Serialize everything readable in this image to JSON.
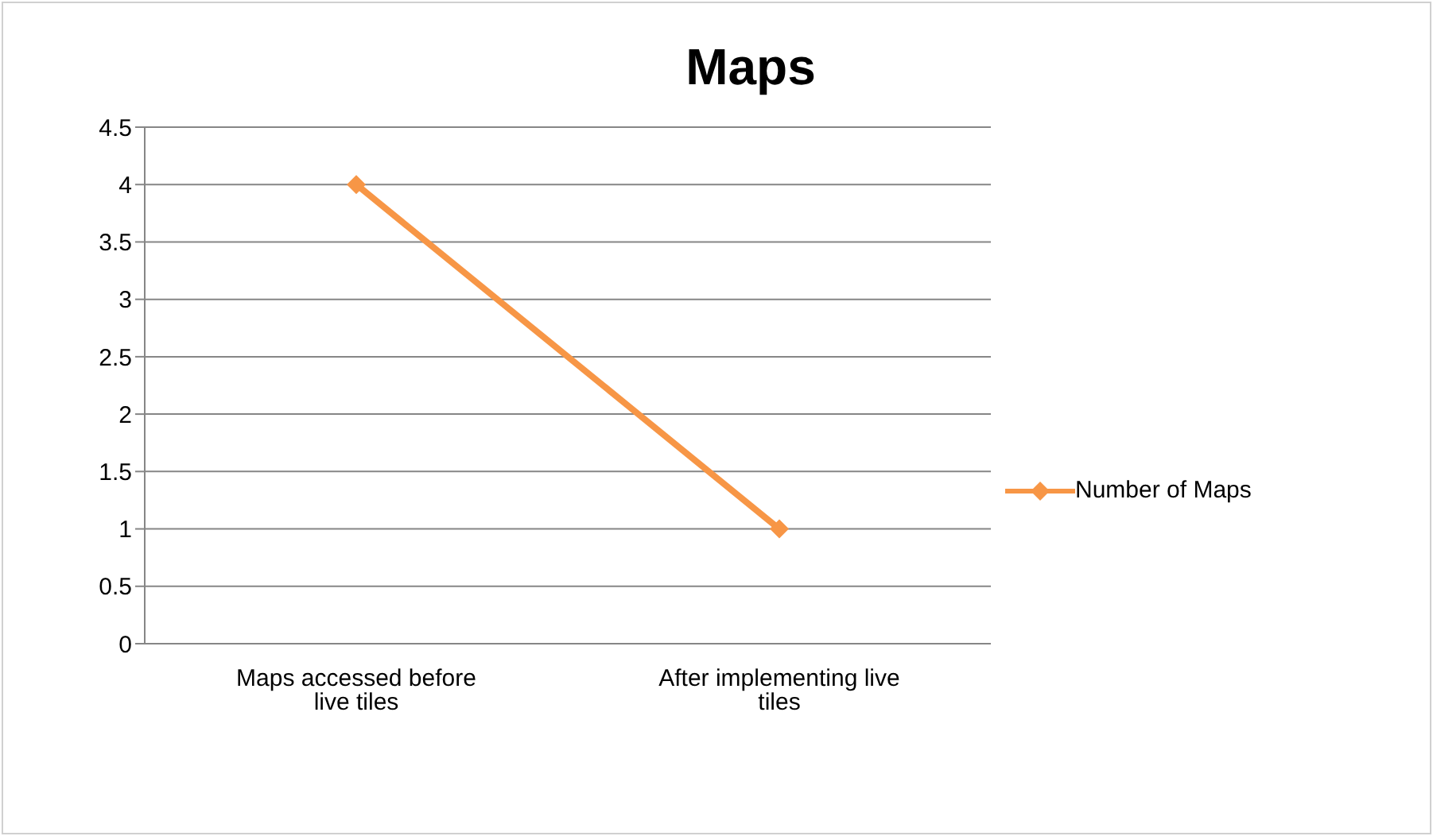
{
  "chart_data": {
    "type": "line",
    "title": "Maps",
    "categories": [
      "Maps accessed before live tiles",
      "After implementing live tiles"
    ],
    "series": [
      {
        "name": "Number of Maps",
        "color": "#f79646",
        "values": [
          4,
          1
        ]
      }
    ],
    "ylim": [
      0,
      4.5
    ],
    "yticks": [
      0,
      0.5,
      1,
      1.5,
      2,
      2.5,
      3,
      3.5,
      4,
      4.5
    ],
    "grid": "y",
    "legend": "right",
    "marker": "diamond",
    "line_style": "solid"
  }
}
